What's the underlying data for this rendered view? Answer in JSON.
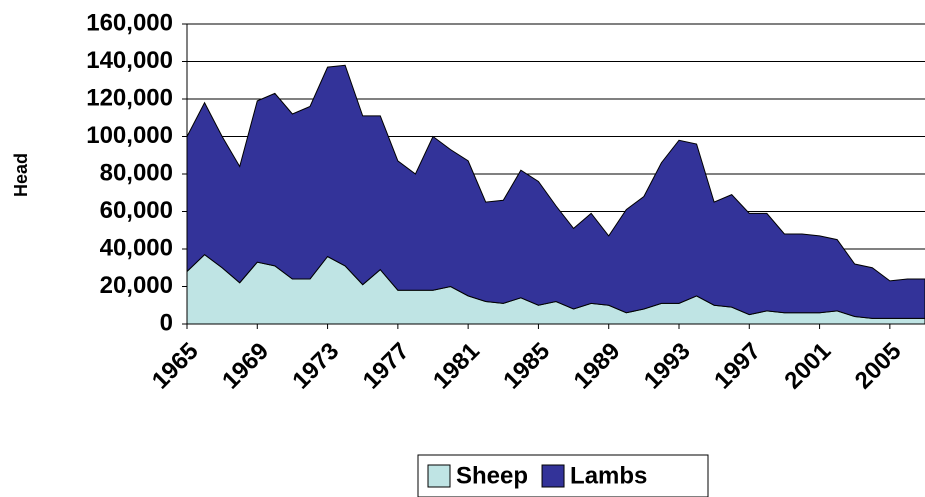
{
  "chart_data": {
    "type": "stacked-area",
    "y_label": "Head",
    "x": [
      1965,
      1966,
      1967,
      1968,
      1969,
      1970,
      1971,
      1972,
      1973,
      1974,
      1975,
      1976,
      1977,
      1978,
      1979,
      1980,
      1981,
      1982,
      1983,
      1984,
      1985,
      1986,
      1987,
      1988,
      1989,
      1990,
      1991,
      1992,
      1993,
      1994,
      1995,
      1996,
      1997,
      1998,
      1999,
      2000,
      2001,
      2002,
      2003,
      2004,
      2005,
      2006,
      2007
    ],
    "xlim": [
      1965,
      2007
    ],
    "xticks": [
      1965,
      1969,
      1973,
      1977,
      1981,
      1985,
      1989,
      1993,
      1997,
      2001,
      2005
    ],
    "ylim": [
      0,
      160000
    ],
    "yticks": [
      0,
      {
        "value": 20000,
        "label": "20,000"
      },
      {
        "value": 40000,
        "label": "40,000"
      },
      {
        "value": 60000,
        "label": "60,000"
      },
      {
        "value": 80000,
        "label": "80,000"
      },
      {
        "value": 100000,
        "label": "100,000"
      },
      {
        "value": 120000,
        "label": "120,000"
      },
      {
        "value": 140000,
        "label": "140,000"
      },
      {
        "value": 160000,
        "label": "160,000"
      }
    ],
    "grid": true,
    "legend": "bottom",
    "series": [
      {
        "name": "Sheep",
        "color": "#bfe4e4",
        "values": [
          28000,
          37000,
          30000,
          22000,
          33000,
          31000,
          24000,
          24000,
          36000,
          31000,
          21000,
          29000,
          18000,
          18000,
          18000,
          20000,
          15000,
          12000,
          11000,
          14000,
          10000,
          12000,
          8000,
          11000,
          10000,
          6000,
          8000,
          11000,
          11000,
          15000,
          10000,
          9000,
          5000,
          7000,
          6000,
          6000,
          6000,
          7000,
          4000,
          3000,
          3000,
          3000,
          3000
        ]
      },
      {
        "name": "Lambs",
        "color": "#333399",
        "values": [
          72000,
          81000,
          70000,
          62000,
          86000,
          92000,
          88000,
          92000,
          101000,
          107000,
          90000,
          82000,
          69000,
          62000,
          82000,
          73000,
          72000,
          53000,
          55000,
          68000,
          66000,
          51000,
          43000,
          48000,
          37000,
          55000,
          60000,
          75000,
          87000,
          81000,
          55000,
          60000,
          54000,
          52000,
          42000,
          42000,
          41000,
          38000,
          28000,
          27000,
          20000,
          21000,
          21000
        ]
      }
    ]
  }
}
